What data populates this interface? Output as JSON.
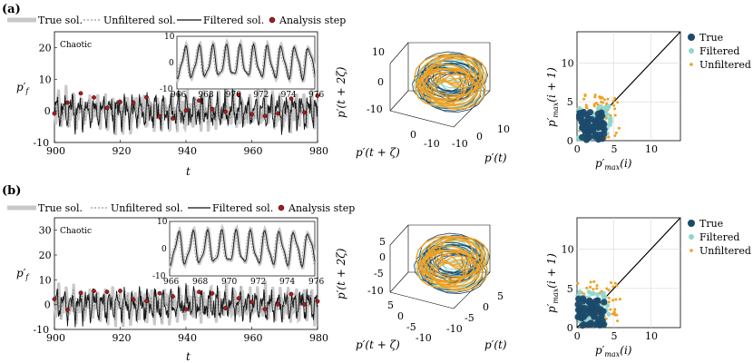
{
  "panel_labels": [
    "(a)",
    "(b)"
  ],
  "legend": {
    "true_label": "True sol.",
    "unfiltered_label": "Unfiltered sol.",
    "filtered_label": "Filtered sol.",
    "analysis_label": "Analysis step"
  },
  "colors": {
    "true": "#c8c8c8",
    "unfiltered": "#808080",
    "filtered": "#111111",
    "analysis": "#b01818",
    "scatter_true": "#1b4a6b",
    "scatter_filtered": "#8fd6cc",
    "scatter_unfiltered": "#f0a020"
  },
  "chart_data": [
    {
      "type": "line",
      "panel": "(a)",
      "annotation": "Chaotic",
      "xlabel": "t",
      "ylabel": "p'_f",
      "xlim": [
        900,
        980
      ],
      "ylim": [
        -10,
        25
      ],
      "xticks": [
        "900",
        "920",
        "940",
        "960",
        "980"
      ],
      "yticks": [
        "-10",
        "0",
        "10",
        "20"
      ],
      "series": [
        {
          "name": "True sol.",
          "amplitude": 6
        },
        {
          "name": "Unfiltered sol.",
          "amplitude": 5
        },
        {
          "name": "Filtered sol.",
          "amplitude": 5.5
        },
        {
          "name": "Analysis step",
          "x": [
            900,
            904,
            908,
            912,
            916,
            920,
            924,
            928,
            932,
            936,
            940,
            944,
            948,
            952,
            956,
            960,
            964,
            968,
            972,
            976,
            980
          ]
        }
      ],
      "inset": {
        "xlim": [
          966,
          976
        ],
        "ylim": [
          -10,
          10
        ],
        "xticks": [
          "966",
          "968",
          "970",
          "972",
          "974",
          "976"
        ],
        "yticks": [
          "-10",
          "0",
          "10"
        ]
      }
    },
    {
      "type": "line",
      "panel": "(b)",
      "annotation": "Chaotic",
      "xlabel": "t",
      "ylabel": "p'_f",
      "xlim": [
        900,
        980
      ],
      "ylim": [
        -10,
        35
      ],
      "xticks": [
        "900",
        "920",
        "940",
        "960",
        "980"
      ],
      "yticks": [
        "-10",
        "0",
        "10",
        "20",
        "30"
      ],
      "series": [
        {
          "name": "True sol.",
          "amplitude": 7
        },
        {
          "name": "Unfiltered sol.",
          "amplitude": 6
        },
        {
          "name": "Filtered sol.",
          "amplitude": 6.5
        },
        {
          "name": "Analysis step",
          "x": [
            900,
            904,
            908,
            912,
            916,
            920,
            924,
            928,
            932,
            936,
            940,
            944,
            948,
            952,
            956,
            960,
            964,
            968,
            972,
            976,
            980
          ]
        }
      ],
      "inset": {
        "xlim": [
          966,
          976
        ],
        "ylim": [
          -10,
          10
        ],
        "xticks": [
          "966",
          "968",
          "970",
          "972",
          "974",
          "976"
        ],
        "yticks": [
          "-10",
          "0",
          "10"
        ]
      }
    },
    {
      "type": "line",
      "panel": "(a) 3D phase",
      "zticks": [
        "10",
        "0",
        "-10"
      ],
      "xticks": [
        "10",
        "0",
        "-10"
      ],
      "yticks": [
        "0",
        "-10"
      ],
      "xlabel": "p'(t)",
      "ylabel": "p'(t+ζ)",
      "zlabel": "p'(t+2ζ)"
    },
    {
      "type": "line",
      "panel": "(b) 3D phase",
      "zticks": [
        "5",
        "0",
        "-5",
        "-10"
      ],
      "xticks": [
        "5",
        "0",
        "-5",
        "-10"
      ],
      "yticks": [
        "5",
        "0",
        "-5",
        "-10"
      ],
      "xlabel": "p'(t)",
      "ylabel": "p'(t+ζ)",
      "zlabel": "p'(t+2ζ)"
    },
    {
      "type": "scatter",
      "panel": "(a) return map",
      "xlabel": "p'_max(i)",
      "ylabel": "p'_max(i+1)",
      "xlim": [
        0,
        14
      ],
      "ylim": [
        0,
        14
      ],
      "xticks": [
        "0",
        "5",
        "10"
      ],
      "yticks": [
        "0",
        "5",
        "10"
      ],
      "legend": [
        "True",
        "Filtered",
        "Unfiltered"
      ]
    },
    {
      "type": "scatter",
      "panel": "(b) return map",
      "xlabel": "p'_max(i)",
      "ylabel": "p'_max(i+1)",
      "xlim": [
        0,
        14
      ],
      "ylim": [
        0,
        14
      ],
      "xticks": [
        "0",
        "5",
        "10"
      ],
      "yticks": [
        "0",
        "5",
        "10"
      ],
      "legend": [
        "True",
        "Filtered",
        "Unfiltered"
      ]
    }
  ]
}
